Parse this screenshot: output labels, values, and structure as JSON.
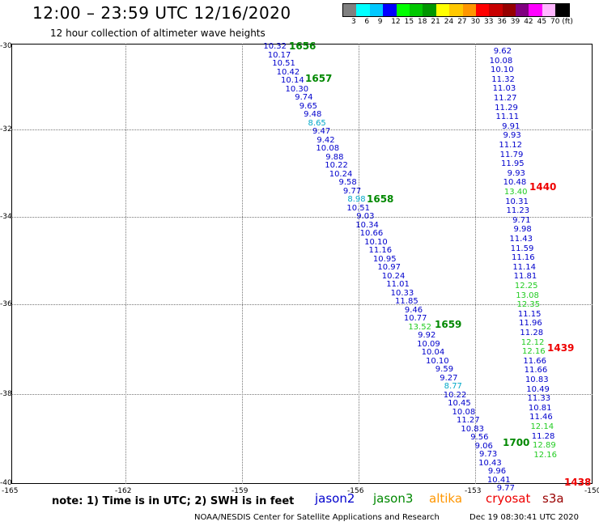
{
  "header": {
    "title": "12:00 – 23:59 UTC 12/16/2020",
    "subtitle": "12 hour collection of altimeter wave heights"
  },
  "legend": {
    "colors": [
      "#808080",
      "#00ffff",
      "#00c8ff",
      "#0000ff",
      "#00ff00",
      "#00c800",
      "#009600",
      "#ffff00",
      "#ffc800",
      "#ff9600",
      "#ff0000",
      "#c80000",
      "#960000",
      "#800080",
      "#ff00ff",
      "#ffb6ff",
      "#000000"
    ],
    "labels": [
      "3",
      "6",
      "9",
      "12",
      "15",
      "18",
      "21",
      "24",
      "27",
      "30",
      "33",
      "36",
      "39",
      "42",
      "45",
      "70 (ft)"
    ]
  },
  "map": {
    "lat_labels": [
      "-30",
      "-32",
      "-34",
      "-36",
      "-38",
      "-40"
    ],
    "lon_labels": [
      "-165",
      "-162",
      "-159",
      "-156",
      "-153",
      "-150"
    ]
  },
  "track_a": {
    "values": [
      "10.32",
      "10.17",
      "10.51",
      "10.42",
      "10.14",
      "10.30",
      "9.74",
      "9.65",
      "9.48",
      "8.65",
      "9.47",
      "9.42",
      "10.08",
      "9.88",
      "10.22",
      "10.24",
      "9.58",
      "9.77",
      "8.98",
      "10.51",
      "9.03",
      "10.34",
      "10.66",
      "10.10",
      "11.16",
      "10.95",
      "10.97",
      "10.24",
      "11.01",
      "10.33",
      "11.85",
      "9.46",
      "10.77",
      "13.52",
      "9.92",
      "10.09",
      "10.04",
      "10.10",
      "9.59",
      "9.27",
      "8.77",
      "10.22",
      "10.45",
      "10.08",
      "11.27",
      "10.83",
      "9.56",
      "9.06",
      "9.73",
      "10.43",
      "9.96",
      "10.41",
      "9.77"
    ]
  },
  "track_b": {
    "values": [
      "9.62",
      "10.08",
      "10.10",
      "11.32",
      "11.03",
      "11.27",
      "11.29",
      "11.11",
      "9.91",
      "9.93",
      "11.12",
      "11.79",
      "11.95",
      "9.93",
      "10.48",
      "13.40",
      "10.31",
      "11.23",
      "9.71",
      "9.98",
      "11.43",
      "11.59",
      "11.16",
      "11.14",
      "11.81",
      "12.25",
      "13.08",
      "12.35",
      "11.15",
      "11.96",
      "11.28",
      "12.12",
      "12.16",
      "11.66",
      "11.66",
      "10.83",
      "10.49",
      "11.33",
      "10.81",
      "11.46",
      "12.14",
      "11.28",
      "12.89",
      "12.16"
    ]
  },
  "pass_times": [
    "1656",
    "1657",
    "1658",
    "1659",
    "1700",
    "1440",
    "1439",
    "1438"
  ],
  "footer": {
    "note": "note: 1) Time is in UTC; 2) SWH is in feet",
    "satellites": [
      {
        "name": "jason2",
        "color": "#0000cc"
      },
      {
        "name": "jason3",
        "color": "#008800"
      },
      {
        "name": "altika",
        "color": "#ff9600"
      },
      {
        "name": "cryosat",
        "color": "#ee0000"
      },
      {
        "name": "s3a",
        "color": "#990000"
      }
    ],
    "credit": "NOAA/NESDIS Center for Satellite Applications and Research",
    "timestamp": "Dec 19 08:30:41 UTC 2020"
  }
}
